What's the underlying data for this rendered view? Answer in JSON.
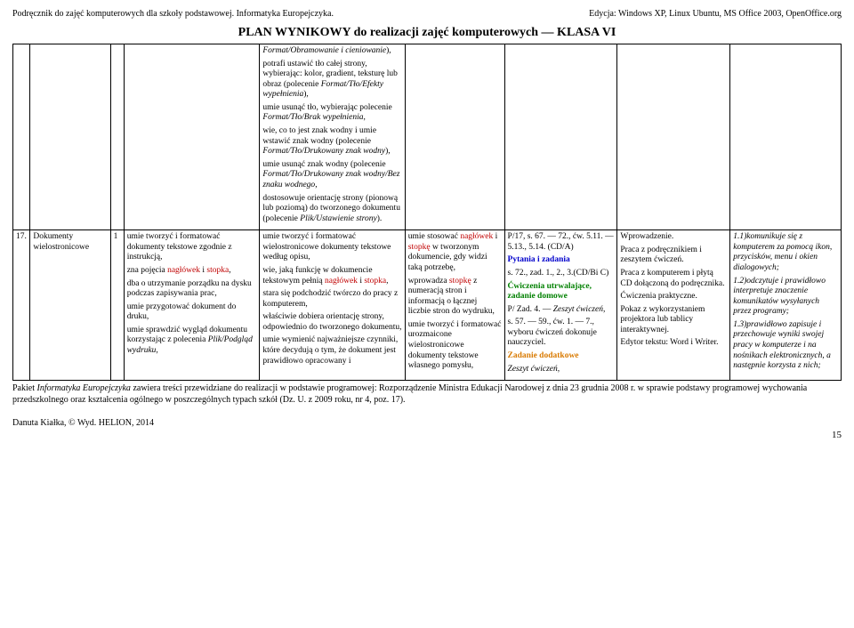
{
  "header": {
    "left": "Podręcznik do zajęć komputerowych dla szkoły podstawowej. Informatyka Europejczyka.",
    "right": "Edycja: Windows XP, Linux Ubuntu, MS Office 2003, OpenOffice.org"
  },
  "title": "PLAN WYNIKOWY do realizacji zajęć komputerowych — KLASA VI",
  "colspecs": [
    "col0",
    "col1",
    "col2",
    "col3",
    "col4",
    "col5",
    "col6",
    "col7",
    "col8"
  ],
  "row_top": {
    "c4": {
      "p1a": "Format/Obramowanie i cieniowanie",
      "p1b": "),",
      "p2a": "potrafi ustawić tło całej strony, wybierając: kolor, gradient, teksturę lub obraz (polecenie ",
      "p2b": "Format/Tło/Efekty wypełnienia",
      "p2c": "),",
      "p3a": "umie usunąć tło, wybierając polecenie ",
      "p3b": "Format/Tło/Brak wypełnienia",
      "p3c": ",",
      "p4a": "wie, co to jest znak wodny i umie wstawić znak wodny (polecenie ",
      "p4b": "Format/Tło/Drukowany znak wodny",
      "p4c": "),",
      "p5a": "umie usunąć znak wodny (polecenie ",
      "p5b": "Format/Tło/Drukowany znak wodny/Bez znaku wodnego",
      "p5c": ",",
      "p6a": "dostosowuje orientację strony (pionową lub poziomą) do tworzonego dokumentu (polecenie ",
      "p6b": "Plik/Ustawienie strony",
      "p6c": ")."
    }
  },
  "row_main": {
    "num": "17.",
    "c1": "Dokumenty wielostronicowe",
    "c2": "1",
    "c3": {
      "p1": "umie tworzyć i formatować dokumenty tekstowe zgodnie z instrukcją,",
      "p2a": "zna pojęcia ",
      "p2b": "nagłówek",
      "p2c": " i ",
      "p2d": "stopka",
      "p2e": ",",
      "p3": "dba o utrzymanie porządku na dysku podczas zapisywania prac,",
      "p4": "umie przygotować dokument do druku,",
      "p5a": "umie sprawdzić wygląd dokumentu korzystając z polecenia ",
      "p5b": "Plik/Podgląd wydruku",
      "p5c": ","
    },
    "c4": {
      "p1": "umie tworzyć i formatować wielostronicowe dokumenty tekstowe według opisu,",
      "p2a": "wie, jaką funkcję w dokumencie tekstowym pełnią ",
      "p2b": "nagłówek",
      "p2c": " i ",
      "p2d": "stopka",
      "p2e": ",",
      "p3": "stara się podchodzić twórczo do pracy z komputerem,",
      "p4": "właściwie dobiera orientację strony, odpowiednio do tworzonego dokumentu,",
      "p5": "umie wymienić najważniejsze czynniki, które decydują o tym, że dokument jest prawidłowo opracowany i"
    },
    "c5": {
      "p1a": "umie stosować ",
      "p1b": "nagłówek",
      "p1c": " i ",
      "p1d": "stopkę",
      "p1e": " w tworzonym dokumencie, gdy widzi taką potrzebę,",
      "p2a": "wprowadza ",
      "p2b": "stopkę",
      "p2c": " z numeracją stron i informacją o łącznej liczbie stron do wydruku,",
      "p3": "umie tworzyć i formatować urozmaicone wielostronicowe dokumenty tekstowe własnego pomysłu,"
    },
    "c6": {
      "p1": "P/17, s. 67. — 72., ćw. 5.11. — 5.13., 5.14. (CD/A)",
      "p2": "Pytania i zadania",
      "p3": "s. 72., zad. 1., 2., 3.(CD/Bi C)",
      "p4": "Ćwiczenia utrwalające, zadanie domowe",
      "p5a": "P/ Zad. 4. — ",
      "p5b": "Zeszyt ćwiczeń",
      "p5c": ",",
      "p6": "s. 57. — 59., ćw. 1. — 7., wyboru ćwiczeń dokonuje nauczyciel.",
      "p7": "Zadanie dodatkowe",
      "p8": "Zeszyt ćwiczeń,"
    },
    "c7": {
      "p1": "Wprowadzenie.",
      "p2": "Praca z podręcznikiem i zeszytem ćwiczeń.",
      "p3": "Praca z komputerem i płytą CD dołączoną do podręcznika.",
      "p4": "Ćwiczenia praktyczne.",
      "p5": "Pokaz z wykorzystaniem projektora lub tablicy interaktywnej.",
      "p6": "Edytor tekstu: Word i Writer."
    },
    "c8": {
      "p1a": "1.1)",
      "p1b": "komunikuje się z komputerem za pomocą ikon, przycisków, menu i okien dialogowych;",
      "p2a": "1.2)",
      "p2b": "odczytuje i prawidłowo interpretuje znaczenie komunikatów wysyłanych przez programy;",
      "p3a": "1.3)",
      "p3b": "prawidłowo zapisuje i przechowuje wyniki swojej pracy w komputerze i na nośnikach elektronicznych, a następnie korzysta z nich;"
    }
  },
  "footer": {
    "note_a": "Pakiet ",
    "note_b": "Informatyka Europejczyka",
    "note_c": " zawiera treści przewidziane do realizacji w podstawie programowej: Rozporządzenie Ministra Edukacji Narodowej z dnia 23 grudnia 2008 r. w sprawie podstawy programowej wychowania przedszkolnego oraz kształcenia ogólnego w poszczególnych typach szkół (Dz. U. z 2009 roku, nr 4, poz. 17).",
    "author": "Danuta Kiałka, © Wyd. HELION, 2014",
    "page": "15"
  }
}
